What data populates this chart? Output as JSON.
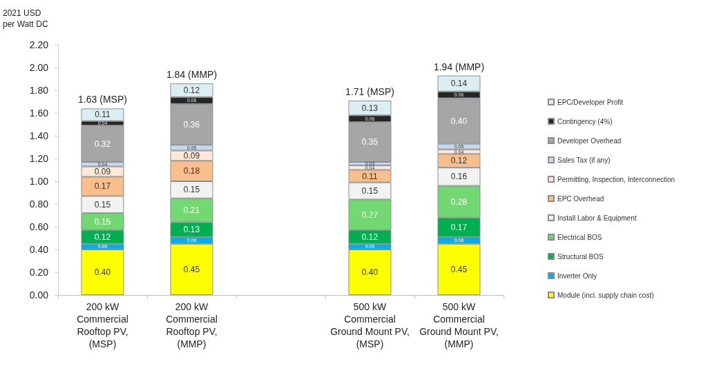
{
  "chart_data": {
    "type": "bar",
    "stacked": true,
    "ylabel": "2021 USD\nper Watt DC",
    "categories": [
      "200 kW\nCommercial\nRooftop PV,\n(MSP)",
      "200 kW\nCommercial\nRooftop PV,\n(MMP)",
      null,
      "500 kW\nCommercial\nGround Mount PV,\n(MSP)",
      "500 kW\nCommercial\nGround Mount PV,\n(MMP)"
    ],
    "ylim": [
      0,
      2.2
    ],
    "yticks": [
      {
        "value": 0,
        "label": "0.00"
      },
      {
        "value": 0.2,
        "label": "0.20"
      },
      {
        "value": 0.4,
        "label": "0.40"
      },
      {
        "value": 0.6,
        "label": "0.60"
      },
      {
        "value": 0.8,
        "label": "0.80"
      },
      {
        "value": 1,
        "label": "1.00"
      },
      {
        "value": 1.2,
        "label": "1.20"
      },
      {
        "value": 1.4,
        "label": "1.40"
      },
      {
        "value": 1.6,
        "label": "1.60"
      },
      {
        "value": 1.8,
        "label": "1.80"
      },
      {
        "value": 2,
        "label": "2.00"
      },
      {
        "value": 2.2,
        "label": "2.20"
      }
    ],
    "grid": false,
    "legend": "right",
    "totals": [
      "1.63 (MSP)",
      "1.84 (MMP)",
      null,
      "1.71 (MSP)",
      "1.94 (MMP)"
    ],
    "series": [
      {
        "name": "Module (incl. supply chain cost)",
        "color": "#ffff00",
        "values": [
          0.4,
          0.45,
          null,
          0.4,
          0.45
        ],
        "value_labels": [
          "0.40",
          "0.45",
          null,
          "0.40",
          "0.45"
        ]
      },
      {
        "name": "Inverter Only",
        "color": "#00b0f0",
        "values": [
          0.05,
          0.06,
          null,
          0.05,
          0.06
        ],
        "value_labels": [
          "0.05",
          "0.06",
          null,
          "0.05",
          "0.06"
        ]
      },
      {
        "name": "Structural BOS",
        "color": "#00b050",
        "values": [
          0.12,
          0.13,
          null,
          0.12,
          0.17
        ],
        "value_labels": [
          "0.12",
          "0.13",
          null,
          "0.12",
          "0.17"
        ]
      },
      {
        "name": "Electrical BOS",
        "color": "#72d872",
        "values": [
          0.15,
          0.21,
          null,
          0.27,
          0.28
        ],
        "value_labels": [
          "0.15",
          "0.21",
          null,
          "0.27",
          "0.28"
        ]
      },
      {
        "name": "Install Labor & Equipment",
        "color": "#f2f2f2",
        "values": [
          0.15,
          0.15,
          null,
          0.15,
          0.16
        ],
        "value_labels": [
          "0.15",
          "0.15",
          null,
          "0.15",
          "0.16"
        ]
      },
      {
        "name": "EPC Overhead",
        "color": "#f8be8c",
        "values": [
          0.17,
          0.18,
          null,
          0.11,
          0.12
        ],
        "value_labels": [
          "0.17",
          "0.18",
          null,
          "0.11",
          "0.12"
        ]
      },
      {
        "name": "Permitting, Inspection, Interconnection",
        "color": "#fde9d9",
        "values": [
          0.09,
          0.09,
          null,
          0.04,
          0.04
        ],
        "value_labels": [
          "0.09",
          "0.09",
          null,
          "0.04",
          "0.04"
        ]
      },
      {
        "name": "Sales Tax (if any)",
        "color": "#c5d9f1",
        "values": [
          0.04,
          0.05,
          null,
          0.03,
          0.05
        ],
        "value_labels": [
          "0.04",
          "0.05",
          null,
          "0.03",
          "0.05"
        ]
      },
      {
        "name": "Developer Overhead",
        "color": "#a6a6a6",
        "values": [
          0.32,
          0.36,
          null,
          0.35,
          0.4
        ],
        "value_labels": [
          "0.32",
          "0.36",
          null,
          "0.35",
          "0.40"
        ]
      },
      {
        "name": "Contingency (4%)",
        "color": "#262626",
        "values": [
          0.04,
          0.06,
          null,
          0.06,
          0.06
        ],
        "value_labels": [
          "0.04",
          "0.06",
          null,
          "0.06",
          "0.06"
        ]
      },
      {
        "name": "EPC/Developer Profit",
        "color": "#daeef3",
        "values": [
          0.11,
          0.12,
          null,
          0.13,
          0.14
        ],
        "value_labels": [
          "0.11",
          "0.12",
          null,
          "0.13",
          "0.14"
        ]
      }
    ]
  }
}
